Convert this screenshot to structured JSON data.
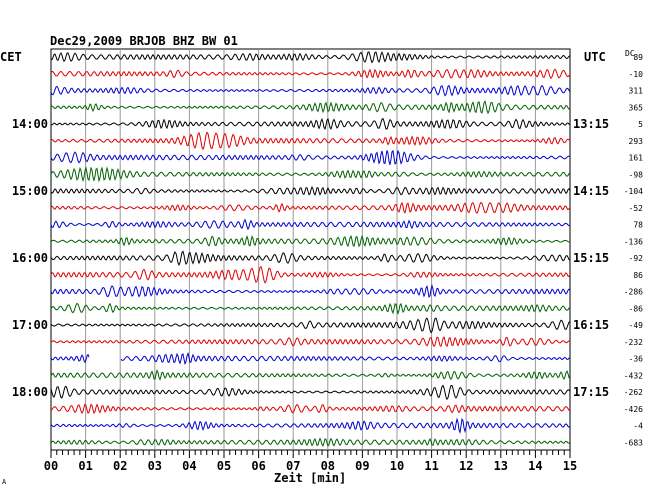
{
  "header": {
    "title": "Dec29,2009   BRJOB BHZ BW 01",
    "left_label": "CET",
    "right_label": "UTC",
    "offset_label": "DC",
    "corner_mark": "A"
  },
  "chart_data": {
    "type": "line",
    "title": "Dec29,2009   BRJOB BHZ BW 01",
    "xlabel": "Zeit [min]",
    "ylabel": "",
    "x_ticks": [
      "00",
      "01",
      "02",
      "03",
      "04",
      "05",
      "06",
      "07",
      "08",
      "09",
      "10",
      "11",
      "12",
      "13",
      "14",
      "15"
    ],
    "xlim": [
      0,
      15
    ],
    "grid": true,
    "trace_colors": [
      "#000000",
      "#e00000",
      "#0000d0",
      "#006000"
    ],
    "left_time_labels": [
      {
        "trace": 4,
        "text": "14:00"
      },
      {
        "trace": 8,
        "text": "15:00"
      },
      {
        "trace": 12,
        "text": "16:00"
      },
      {
        "trace": 16,
        "text": "17:00"
      },
      {
        "trace": 20,
        "text": "18:00"
      }
    ],
    "right_time_labels": [
      {
        "trace": 4,
        "text": "13:15"
      },
      {
        "trace": 8,
        "text": "14:15"
      },
      {
        "trace": 12,
        "text": "15:15"
      },
      {
        "trace": 16,
        "text": "16:15"
      },
      {
        "trace": 20,
        "text": "17:15"
      }
    ],
    "offsets": [
      "89",
      "-10",
      "311",
      "365",
      "5",
      "293",
      "161",
      "-98",
      "-104",
      "-52",
      "78",
      "-136",
      "-92",
      "86",
      "-286",
      "-86",
      "-49",
      "-232",
      "-36",
      "-432",
      "-262",
      "-426",
      "-4",
      "-683"
    ],
    "data_gap": {
      "trace": 18,
      "from_min": 1.1,
      "to_min": 2.0
    }
  }
}
